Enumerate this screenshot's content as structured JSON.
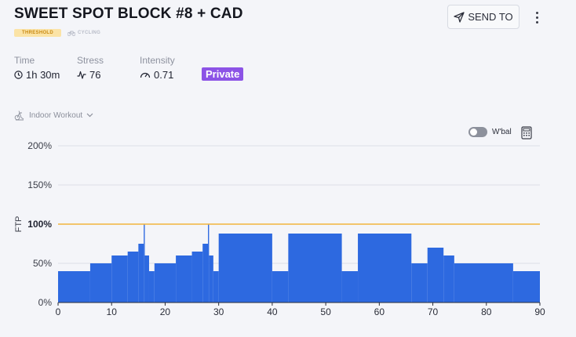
{
  "header": {
    "title": "SWEET SPOT BLOCK #8 + CAD",
    "tag_threshold": "THRESHOLD",
    "tag_sport": "CYCLING",
    "send_label": "SEND TO"
  },
  "stats": {
    "time_label": "Time",
    "time_value": "1h 30m",
    "stress_label": "Stress",
    "stress_value": "76",
    "intensity_label": "Intensity",
    "intensity_value": "0.71",
    "privacy_badge": "Private"
  },
  "workout_type": "Indoor Workout",
  "wbal_label": "W'bal",
  "colors": {
    "bar": "#2d69e0",
    "ftp_line": "#f1b43c",
    "private": "#8c53e6",
    "grid": "#dde0e6"
  },
  "chart_data": {
    "type": "area",
    "ylabel": "FTP",
    "xlim": [
      0,
      90
    ],
    "ylim": [
      0,
      200
    ],
    "x_ticks": [
      0,
      10,
      20,
      30,
      40,
      50,
      60,
      70,
      80,
      90
    ],
    "y_ticks": [
      0,
      50,
      100,
      150,
      200
    ],
    "y_tick_labels": [
      "0%",
      "50%",
      "100%",
      "150%",
      "200%"
    ],
    "reference_line": 100,
    "segments": [
      {
        "start": 0,
        "end": 6,
        "value": 40
      },
      {
        "start": 6,
        "end": 10,
        "value": 50
      },
      {
        "start": 10,
        "end": 13,
        "value": 60
      },
      {
        "start": 13,
        "end": 15,
        "value": 65
      },
      {
        "start": 15,
        "end": 16,
        "value": 75
      },
      {
        "start": 16,
        "end": 16.2,
        "value": 100
      },
      {
        "start": 16.2,
        "end": 17,
        "value": 60
      },
      {
        "start": 17,
        "end": 18,
        "value": 40
      },
      {
        "start": 18,
        "end": 22,
        "value": 50
      },
      {
        "start": 22,
        "end": 25,
        "value": 60
      },
      {
        "start": 25,
        "end": 27,
        "value": 65
      },
      {
        "start": 27,
        "end": 28,
        "value": 75
      },
      {
        "start": 28,
        "end": 28.2,
        "value": 100
      },
      {
        "start": 28.2,
        "end": 29,
        "value": 60
      },
      {
        "start": 29,
        "end": 30,
        "value": 40
      },
      {
        "start": 30,
        "end": 40,
        "value": 88
      },
      {
        "start": 40,
        "end": 43,
        "value": 40
      },
      {
        "start": 43,
        "end": 53,
        "value": 88
      },
      {
        "start": 53,
        "end": 56,
        "value": 40
      },
      {
        "start": 56,
        "end": 66,
        "value": 88
      },
      {
        "start": 66,
        "end": 69,
        "value": 50
      },
      {
        "start": 69,
        "end": 72,
        "value": 70
      },
      {
        "start": 72,
        "end": 74,
        "value": 60
      },
      {
        "start": 74,
        "end": 85,
        "value": 50
      },
      {
        "start": 85,
        "end": 90,
        "value": 40
      }
    ]
  }
}
